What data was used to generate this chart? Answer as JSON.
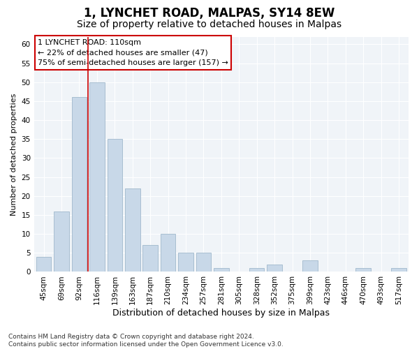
{
  "title1": "1, LYNCHET ROAD, MALPAS, SY14 8EW",
  "title2": "Size of property relative to detached houses in Malpas",
  "xlabel": "Distribution of detached houses by size in Malpas",
  "ylabel": "Number of detached properties",
  "categories": [
    "45sqm",
    "69sqm",
    "92sqm",
    "116sqm",
    "139sqm",
    "163sqm",
    "187sqm",
    "210sqm",
    "234sqm",
    "257sqm",
    "281sqm",
    "305sqm",
    "328sqm",
    "352sqm",
    "375sqm",
    "399sqm",
    "423sqm",
    "446sqm",
    "470sqm",
    "493sqm",
    "517sqm"
  ],
  "values": [
    4,
    16,
    46,
    50,
    35,
    22,
    7,
    10,
    5,
    5,
    1,
    0,
    1,
    2,
    0,
    3,
    0,
    0,
    1,
    0,
    1
  ],
  "bar_color": "#c8d8e8",
  "bar_edge_color": "#a0b8cc",
  "vline_x": 2.5,
  "vline_color": "#cc0000",
  "annotation_lines": [
    "1 LYNCHET ROAD: 110sqm",
    "← 22% of detached houses are smaller (47)",
    "75% of semi-detached houses are larger (157) →"
  ],
  "annotation_box_color": "#ffffff",
  "annotation_box_edge_color": "#cc0000",
  "ylim": [
    0,
    62
  ],
  "yticks": [
    0,
    5,
    10,
    15,
    20,
    25,
    30,
    35,
    40,
    45,
    50,
    55,
    60
  ],
  "footnote": "Contains HM Land Registry data © Crown copyright and database right 2024.\nContains public sector information licensed under the Open Government Licence v3.0.",
  "background_color": "#ffffff",
  "plot_bg_color": "#f0f4f8",
  "grid_color": "#ffffff",
  "title1_fontsize": 12,
  "title2_fontsize": 10,
  "xlabel_fontsize": 9,
  "ylabel_fontsize": 8,
  "tick_fontsize": 7.5,
  "annotation_fontsize": 8,
  "footnote_fontsize": 6.5
}
